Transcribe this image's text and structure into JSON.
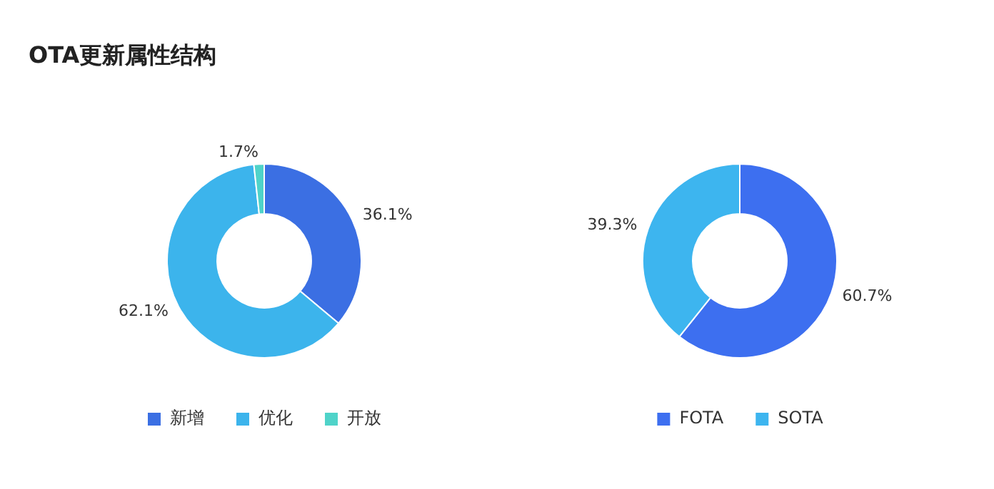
{
  "chart_data": [
    {
      "type": "donut",
      "title": "OTA更新属性结构",
      "categories": [
        "新增",
        "优化",
        "开放"
      ],
      "values": [
        36.1,
        62.1,
        1.7
      ],
      "colors": [
        "#3b6fe3",
        "#3cb4ec",
        "#4fd3c9"
      ],
      "value_labels": [
        "36.1%",
        "62.1%",
        "1.7%"
      ],
      "legend": "bottom"
    },
    {
      "type": "donut",
      "categories": [
        "FOTA",
        "SOTA"
      ],
      "values": [
        60.7,
        39.3
      ],
      "colors": [
        "#3d6ff0",
        "#3db5ef"
      ],
      "value_labels": [
        "60.7%",
        "39.3%"
      ],
      "legend": "bottom"
    }
  ]
}
